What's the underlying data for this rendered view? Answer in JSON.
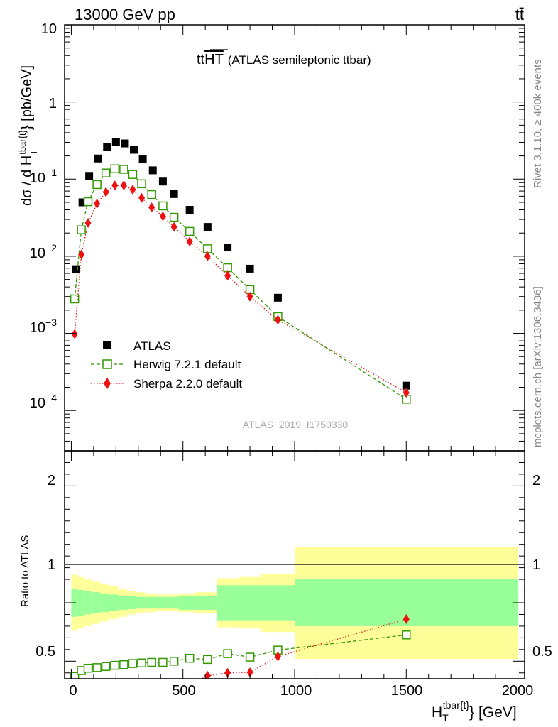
{
  "header": {
    "energy_label": "13000 GeV pp",
    "process_label": "tt̄",
    "plot_title_main": "tt",
    "plot_title_overline": "HT",
    "plot_title_sub": "(ATLAS semileptonic ttbar)",
    "analysis_id": "ATLAS_2019_I1750330",
    "side_label_rivet": "Rivet 3.1.10, ≥ 400k events",
    "side_label_mcplots": "mcplots.cern.ch [arXiv:1306.3436]"
  },
  "legend": {
    "placement": "lower-left",
    "entries": [
      "ATLAS",
      "Herwig 7.2.1 default",
      "Sherpa 2.2.0 default"
    ]
  },
  "chart_data": [
    {
      "type": "scatter",
      "panel": "main",
      "log_y": true,
      "ylabel": "dσ / d H_T^{tbar{t}} [pb/GeV]",
      "ylim": [
        3e-05,
        10
      ],
      "xlim": [
        -30,
        2030
      ],
      "y_tick_labels": [
        "10",
        "1",
        "10^-1",
        "10^-2",
        "10^-3",
        "10^-4"
      ],
      "series": [
        {
          "name": "ATLAS",
          "color": "#000000",
          "marker": "square-filled",
          "x": [
            20,
            50,
            80,
            120,
            160,
            200,
            240,
            280,
            320,
            365,
            410,
            460,
            530,
            610,
            700,
            800,
            925,
            1500
          ],
          "y": [
            0.0068,
            0.05,
            0.11,
            0.185,
            0.26,
            0.3,
            0.29,
            0.24,
            0.18,
            0.13,
            0.093,
            0.064,
            0.04,
            0.024,
            0.013,
            0.0069,
            0.0029,
            0.00021
          ]
        },
        {
          "name": "Herwig 7.2.1 default",
          "color": "#339900",
          "marker": "square-open",
          "line": "dashed",
          "x": [
            15,
            45,
            75,
            115,
            155,
            195,
            235,
            275,
            315,
            360,
            410,
            460,
            530,
            610,
            700,
            800,
            925,
            1500
          ],
          "y": [
            0.0028,
            0.022,
            0.051,
            0.085,
            0.12,
            0.136,
            0.134,
            0.115,
            0.087,
            0.063,
            0.045,
            0.032,
            0.021,
            0.0125,
            0.0071,
            0.0037,
            0.00165,
            0.00014
          ]
        },
        {
          "name": "Sherpa 2.2.0 default",
          "color": "#ee1111",
          "marker": "diamond-filled",
          "line": "dotted",
          "x": [
            15,
            45,
            75,
            115,
            155,
            195,
            235,
            275,
            315,
            360,
            410,
            460,
            530,
            610,
            700,
            800,
            925,
            1500
          ],
          "y": [
            0.00098,
            0.0105,
            0.027,
            0.048,
            0.068,
            0.083,
            0.083,
            0.073,
            0.057,
            0.043,
            0.033,
            0.024,
            0.0155,
            0.01,
            0.0056,
            0.003,
            0.0015,
            0.00017
          ]
        }
      ]
    },
    {
      "type": "scatter",
      "panel": "ratio",
      "ylabel": "Ratio to ATLAS",
      "xlabel": "H_T^{tbar{t}} [GeV]",
      "ylim": [
        0.35,
        2.3
      ],
      "xlim": [
        -30,
        2030
      ],
      "x_ticks": [
        0,
        500,
        1000,
        1500,
        2000
      ],
      "y_ticks": [
        0.5,
        1,
        2
      ],
      "uncertainty_bands": {
        "edges": [
          0,
          30,
          60,
          90,
          130,
          170,
          210,
          250,
          290,
          330,
          380,
          430,
          480,
          550,
          620,
          650,
          750,
          850,
          1000,
          2000
        ],
        "outer_yellow": [
          0.24,
          0.22,
          0.2,
          0.18,
          0.16,
          0.14,
          0.12,
          0.1,
          0.09,
          0.08,
          0.07,
          0.07,
          0.08,
          0.09,
          0.09,
          0.21,
          0.22,
          0.25,
          0.48
        ],
        "inner_green": [
          0.12,
          0.11,
          0.1,
          0.09,
          0.08,
          0.07,
          0.06,
          0.055,
          0.05,
          0.05,
          0.05,
          0.05,
          0.06,
          0.06,
          0.06,
          0.15,
          0.15,
          0.15,
          0.2
        ]
      },
      "series": [
        {
          "name": "Herwig 7.2.1 default",
          "color": "#339900",
          "marker": "square-open",
          "line": "dashed",
          "x": [
            15,
            45,
            75,
            115,
            155,
            195,
            235,
            275,
            315,
            360,
            410,
            460,
            530,
            610,
            700,
            800,
            925,
            1500
          ],
          "y": [
            0.37,
            0.42,
            0.44,
            0.445,
            0.455,
            0.465,
            0.47,
            0.48,
            0.485,
            0.49,
            0.49,
            0.5,
            0.525,
            0.515,
            0.565,
            0.535,
            0.595,
            0.725
          ]
        },
        {
          "name": "Sherpa 2.2.0 default",
          "color": "#ee1111",
          "marker": "diamond-filled",
          "line": "dotted",
          "x": [
            530,
            610,
            700,
            800,
            925,
            1500
          ],
          "y": [
            0.3,
            0.375,
            0.4,
            0.405,
            0.54,
            0.86
          ]
        }
      ]
    }
  ]
}
